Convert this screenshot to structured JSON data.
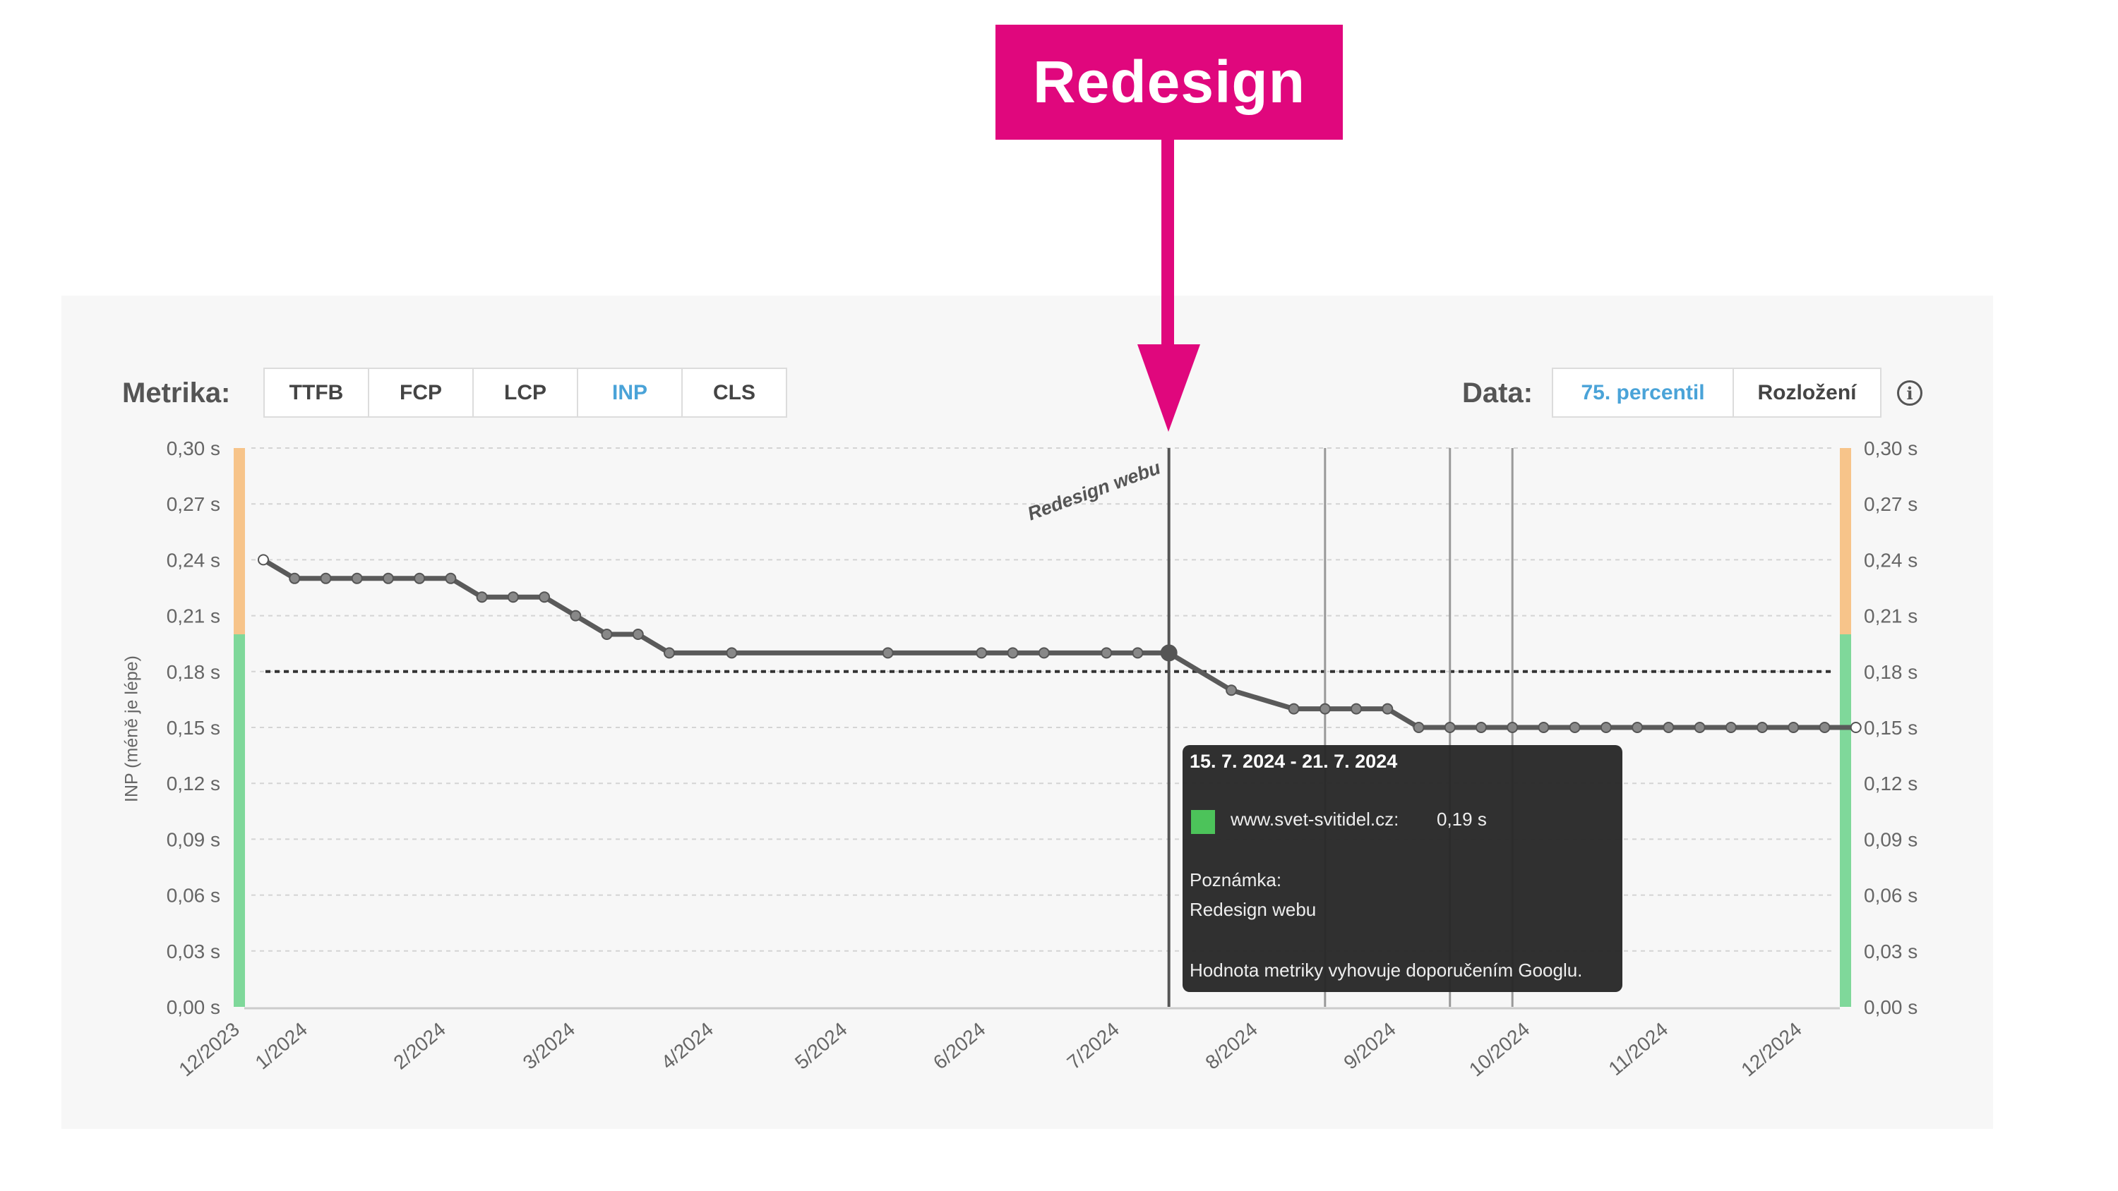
{
  "banner": {
    "text": "Redesign",
    "color": "#e0077d"
  },
  "controls": {
    "metric_label": "Metrika:",
    "metrics": [
      {
        "label": "TTFB",
        "active": false
      },
      {
        "label": "FCP",
        "active": false
      },
      {
        "label": "LCP",
        "active": false
      },
      {
        "label": "INP",
        "active": true
      },
      {
        "label": "CLS",
        "active": false
      }
    ],
    "data_label": "Data:",
    "data_options": [
      {
        "label": "75. percentil",
        "active": true
      },
      {
        "label": "Rozložení",
        "active": false
      }
    ],
    "info_icon": "info-circle-icon",
    "active_color": "#4aa3d8"
  },
  "tooltip": {
    "title": "15. 7. 2024 - 21. 7. 2024",
    "series": "www.svet-svitidel.cz:",
    "value": "0,19 s",
    "note_label": "Poznámka:",
    "note": "Redesign webu",
    "footer": "Hodnota metriky vyhovuje doporučením Googlu.",
    "swatch_color": "#4cc35a"
  },
  "chart_data": {
    "type": "line",
    "ylabel": "INP (méně je lépe)",
    "ylim": [
      0,
      0.3
    ],
    "y_ticks": [
      "0,00 s",
      "0,03 s",
      "0,06 s",
      "0,09 s",
      "0,12 s",
      "0,15 s",
      "0,18 s",
      "0,21 s",
      "0,24 s",
      "0,27 s",
      "0,30 s"
    ],
    "x_ticks": [
      {
        "label": "12/2023",
        "date": "2023-12-01"
      },
      {
        "label": "1/2024",
        "date": "2024-01-01"
      },
      {
        "label": "2/2024",
        "date": "2024-02-01"
      },
      {
        "label": "3/2024",
        "date": "2024-03-01"
      },
      {
        "label": "4/2024",
        "date": "2024-04-01"
      },
      {
        "label": "5/2024",
        "date": "2024-05-01"
      },
      {
        "label": "6/2024",
        "date": "2024-06-01"
      },
      {
        "label": "7/2024",
        "date": "2024-07-01"
      },
      {
        "label": "8/2024",
        "date": "2024-08-01"
      },
      {
        "label": "9/2024",
        "date": "2024-09-01"
      },
      {
        "label": "10/2024",
        "date": "2024-10-01"
      },
      {
        "label": "11/2024",
        "date": "2024-11-01"
      },
      {
        "label": "12/2024",
        "date": "2024-12-01"
      }
    ],
    "grid": true,
    "threshold": 0.18,
    "zones": [
      {
        "from": 0,
        "to": 0.2,
        "color": "#7fd89a"
      },
      {
        "from": 0.2,
        "to": 0.3,
        "color": "#f7c48a"
      }
    ],
    "line_color": "#5a5a5a",
    "series": [
      {
        "name": "www.svet-svitidel.cz",
        "points": [
          {
            "x": "2023-12-25",
            "y": 0.24
          },
          {
            "x": "2024-01-01",
            "y": 0.23
          },
          {
            "x": "2024-01-08",
            "y": 0.23
          },
          {
            "x": "2024-01-15",
            "y": 0.23
          },
          {
            "x": "2024-01-22",
            "y": 0.23
          },
          {
            "x": "2024-01-29",
            "y": 0.23
          },
          {
            "x": "2024-02-05",
            "y": 0.23
          },
          {
            "x": "2024-02-12",
            "y": 0.22
          },
          {
            "x": "2024-02-19",
            "y": 0.22
          },
          {
            "x": "2024-02-26",
            "y": 0.22
          },
          {
            "x": "2024-03-04",
            "y": 0.21
          },
          {
            "x": "2024-03-11",
            "y": 0.2
          },
          {
            "x": "2024-03-18",
            "y": 0.2
          },
          {
            "x": "2024-03-25",
            "y": 0.19
          },
          {
            "x": "2024-04-08",
            "y": 0.19
          },
          {
            "x": "2024-05-13",
            "y": 0.19
          },
          {
            "x": "2024-06-03",
            "y": 0.19
          },
          {
            "x": "2024-06-10",
            "y": 0.19
          },
          {
            "x": "2024-06-17",
            "y": 0.19
          },
          {
            "x": "2024-07-01",
            "y": 0.19
          },
          {
            "x": "2024-07-08",
            "y": 0.19
          },
          {
            "x": "2024-07-15",
            "y": 0.19
          },
          {
            "x": "2024-07-29",
            "y": 0.17
          },
          {
            "x": "2024-08-12",
            "y": 0.16
          },
          {
            "x": "2024-08-19",
            "y": 0.16
          },
          {
            "x": "2024-08-26",
            "y": 0.16
          },
          {
            "x": "2024-09-02",
            "y": 0.16
          },
          {
            "x": "2024-09-09",
            "y": 0.15
          },
          {
            "x": "2024-09-16",
            "y": 0.15
          },
          {
            "x": "2024-09-23",
            "y": 0.15
          },
          {
            "x": "2024-09-30",
            "y": 0.15
          },
          {
            "x": "2024-10-07",
            "y": 0.15
          },
          {
            "x": "2024-10-14",
            "y": 0.15
          },
          {
            "x": "2024-10-21",
            "y": 0.15
          },
          {
            "x": "2024-10-28",
            "y": 0.15
          },
          {
            "x": "2024-11-04",
            "y": 0.15
          },
          {
            "x": "2024-11-11",
            "y": 0.15
          },
          {
            "x": "2024-11-18",
            "y": 0.15
          },
          {
            "x": "2024-11-25",
            "y": 0.15
          },
          {
            "x": "2024-12-02",
            "y": 0.15
          },
          {
            "x": "2024-12-09",
            "y": 0.15
          },
          {
            "x": "2024-12-16",
            "y": 0.15
          }
        ]
      }
    ],
    "highlighted_point": "2024-07-15",
    "annotations": [
      {
        "date": "2024-07-15",
        "label": "Redesign webu"
      },
      {
        "date": "2024-08-19",
        "label": ""
      },
      {
        "date": "2024-09-16",
        "label": ""
      },
      {
        "date": "2024-09-30",
        "label": ""
      }
    ]
  }
}
